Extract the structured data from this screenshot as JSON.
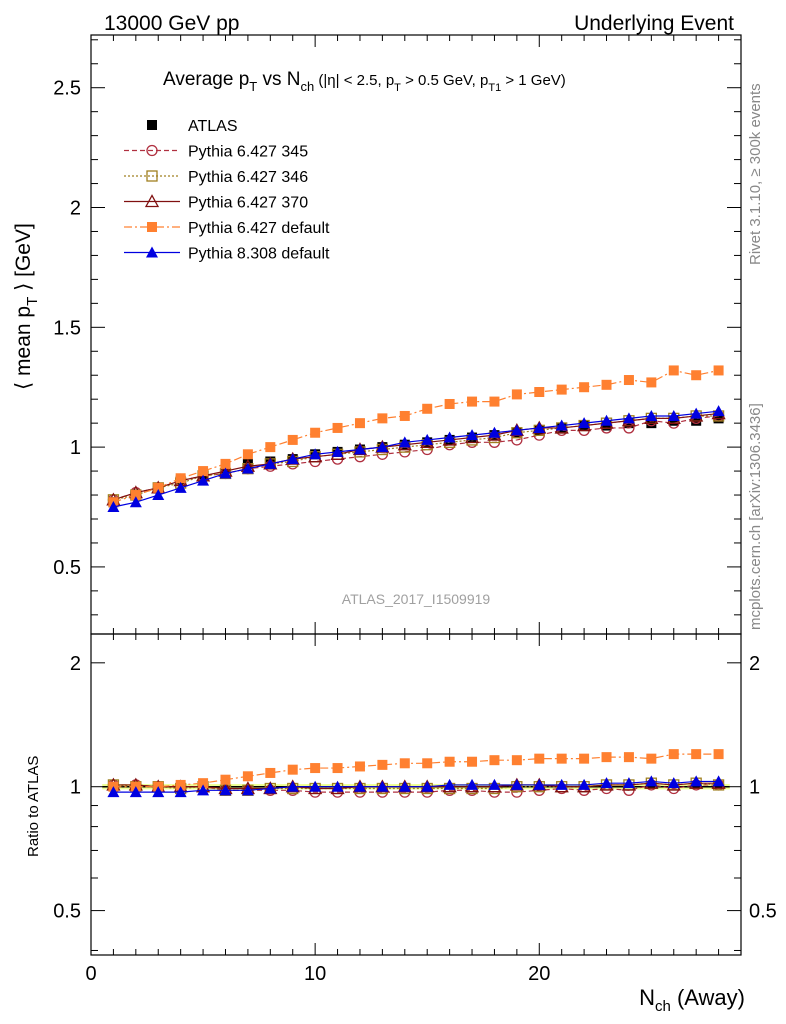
{
  "header": {
    "left": "13000 GeV pp",
    "right": "Underlying Event"
  },
  "side_labels": {
    "rivet": "Rivet 3.1.10, ≥ 300k events",
    "mcplots": "mcplots.cern.ch [arXiv:1306.3436]"
  },
  "title": {
    "t1": "Average p",
    "t2": "T",
    "t3": " vs N",
    "t4": "ch",
    "t5": " (|η| < 2.5, p",
    "t6": "T",
    "t7": " > 0.5 GeV, p",
    "t8": "T1",
    "t9": " > 1 GeV)"
  },
  "watermark": "ATLAS_2017_I1509919",
  "ylabel": {
    "a": "⟨ mean p",
    "b": "T",
    "c": " ⟩ [GeV]"
  },
  "xlabel": {
    "a": "N",
    "b": "ch",
    "c": " (Away)"
  },
  "ratio_ylabel": "Ratio to ATLAS",
  "colors": {
    "atlas": "#000000",
    "p345": "#b03040",
    "p346": "#a08020",
    "p370": "#801010",
    "p6def": "#ff8030",
    "p8def": "#0000e0",
    "band": "#e6ff66"
  },
  "chart_data": [
    {
      "type": "line",
      "title": "Average pT vs Nch (|η| < 2.5, pT > 0.5 GeV, pT1 > 1 GeV)",
      "xlabel": "Nch (Away)",
      "ylabel": "⟨ mean pT ⟩ [GeV]",
      "xlim": [
        0,
        29
      ],
      "ylim": [
        0.22,
        2.72
      ],
      "yticks": [
        "0.5",
        "1",
        "1.5",
        "2",
        "2.5"
      ],
      "legend_position": "top-left",
      "x": [
        1,
        2,
        3,
        4,
        5,
        6,
        7,
        8,
        9,
        10,
        11,
        12,
        13,
        14,
        15,
        16,
        17,
        18,
        19,
        20,
        21,
        22,
        23,
        24,
        25,
        26,
        27,
        28
      ],
      "series": [
        {
          "name": "ATLAS",
          "key": "atlas",
          "values": [
            0.77,
            0.8,
            0.83,
            0.86,
            0.88,
            0.91,
            0.93,
            0.94,
            0.95,
            0.97,
            0.98,
            0.99,
            1.0,
            1.01,
            1.02,
            1.03,
            1.04,
            1.05,
            1.06,
            1.07,
            1.08,
            1.09,
            1.09,
            1.1,
            1.1,
            1.11,
            1.11,
            1.12
          ]
        },
        {
          "name": "Pythia 6.427 345",
          "key": "p345",
          "values": [
            0.78,
            0.81,
            0.83,
            0.86,
            0.88,
            0.89,
            0.91,
            0.92,
            0.93,
            0.94,
            0.95,
            0.96,
            0.97,
            0.98,
            0.99,
            1.01,
            1.02,
            1.02,
            1.03,
            1.05,
            1.07,
            1.07,
            1.08,
            1.08,
            1.11,
            1.1,
            1.12,
            1.13
          ]
        },
        {
          "name": "Pythia 6.427 346",
          "key": "p346",
          "values": [
            0.78,
            0.8,
            0.83,
            0.85,
            0.88,
            0.89,
            0.91,
            0.93,
            0.94,
            0.96,
            0.97,
            0.98,
            0.99,
            1.0,
            1.01,
            1.02,
            1.03,
            1.04,
            1.06,
            1.07,
            1.08,
            1.09,
            1.1,
            1.11,
            1.12,
            1.12,
            1.13,
            1.13
          ]
        },
        {
          "name": "Pythia 6.427 370",
          "key": "p370",
          "values": [
            0.78,
            0.81,
            0.83,
            0.86,
            0.88,
            0.9,
            0.92,
            0.93,
            0.95,
            0.96,
            0.97,
            0.99,
            1.0,
            1.01,
            1.02,
            1.03,
            1.04,
            1.05,
            1.07,
            1.08,
            1.08,
            1.09,
            1.1,
            1.11,
            1.12,
            1.12,
            1.13,
            1.14
          ]
        },
        {
          "name": "Pythia 6.427 default",
          "key": "p6def",
          "values": [
            0.77,
            0.8,
            0.83,
            0.87,
            0.9,
            0.93,
            0.97,
            1.0,
            1.03,
            1.06,
            1.08,
            1.1,
            1.12,
            1.13,
            1.16,
            1.18,
            1.19,
            1.19,
            1.22,
            1.23,
            1.24,
            1.25,
            1.26,
            1.28,
            1.27,
            1.32,
            1.3,
            1.32
          ]
        },
        {
          "name": "Pythia 8.308 default",
          "key": "p8def",
          "values": [
            0.75,
            0.77,
            0.8,
            0.83,
            0.86,
            0.89,
            0.91,
            0.93,
            0.95,
            0.97,
            0.98,
            0.99,
            1.0,
            1.02,
            1.03,
            1.04,
            1.05,
            1.06,
            1.07,
            1.08,
            1.09,
            1.1,
            1.11,
            1.12,
            1.13,
            1.13,
            1.14,
            1.15
          ]
        }
      ]
    },
    {
      "type": "line",
      "title": "",
      "xlabel": "Nch (Away)",
      "ylabel": "Ratio to ATLAS",
      "xlim": [
        0,
        29
      ],
      "xticks": [
        "0",
        "10",
        "20"
      ],
      "ylim": [
        0.39,
        2.35
      ],
      "log_y": true,
      "yticks": [
        "0.5",
        "1",
        "2"
      ],
      "x": [
        1,
        2,
        3,
        4,
        5,
        6,
        7,
        8,
        9,
        10,
        11,
        12,
        13,
        14,
        15,
        16,
        17,
        18,
        19,
        20,
        21,
        22,
        23,
        24,
        25,
        26,
        27,
        28
      ],
      "series": [
        {
          "key": "p345",
          "values": [
            1.01,
            1.01,
            1.0,
            1.0,
            1.0,
            0.98,
            0.98,
            0.98,
            0.98,
            0.97,
            0.97,
            0.97,
            0.97,
            0.97,
            0.97,
            0.98,
            0.98,
            0.97,
            0.97,
            0.98,
            0.99,
            0.98,
            0.99,
            0.98,
            1.01,
            0.99,
            1.01,
            1.01
          ]
        },
        {
          "key": "p346",
          "values": [
            1.01,
            1.0,
            1.0,
            0.99,
            1.0,
            0.98,
            0.98,
            0.99,
            0.99,
            0.99,
            0.99,
            0.99,
            0.99,
            0.99,
            0.99,
            0.99,
            0.99,
            0.99,
            1.0,
            1.0,
            1.0,
            1.0,
            1.01,
            1.01,
            1.02,
            1.01,
            1.02,
            1.01
          ]
        },
        {
          "key": "p370",
          "values": [
            1.01,
            1.01,
            1.0,
            1.0,
            1.0,
            0.99,
            0.99,
            0.99,
            1.0,
            0.99,
            0.99,
            1.0,
            1.0,
            1.0,
            1.0,
            1.0,
            1.0,
            1.0,
            1.01,
            1.01,
            1.0,
            1.0,
            1.01,
            1.01,
            1.02,
            1.01,
            1.02,
            1.02
          ]
        },
        {
          "key": "p6def",
          "values": [
            1.0,
            1.0,
            1.0,
            1.01,
            1.02,
            1.04,
            1.06,
            1.08,
            1.1,
            1.11,
            1.11,
            1.12,
            1.13,
            1.14,
            1.14,
            1.15,
            1.15,
            1.16,
            1.16,
            1.17,
            1.17,
            1.17,
            1.18,
            1.18,
            1.17,
            1.2,
            1.2,
            1.2
          ]
        },
        {
          "key": "p8def",
          "values": [
            0.97,
            0.97,
            0.97,
            0.97,
            0.98,
            0.98,
            0.98,
            0.99,
            1.0,
            1.0,
            1.0,
            1.0,
            1.0,
            1.0,
            1.0,
            1.01,
            1.01,
            1.01,
            1.01,
            1.01,
            1.01,
            1.01,
            1.02,
            1.02,
            1.03,
            1.02,
            1.03,
            1.03
          ]
        }
      ]
    }
  ]
}
